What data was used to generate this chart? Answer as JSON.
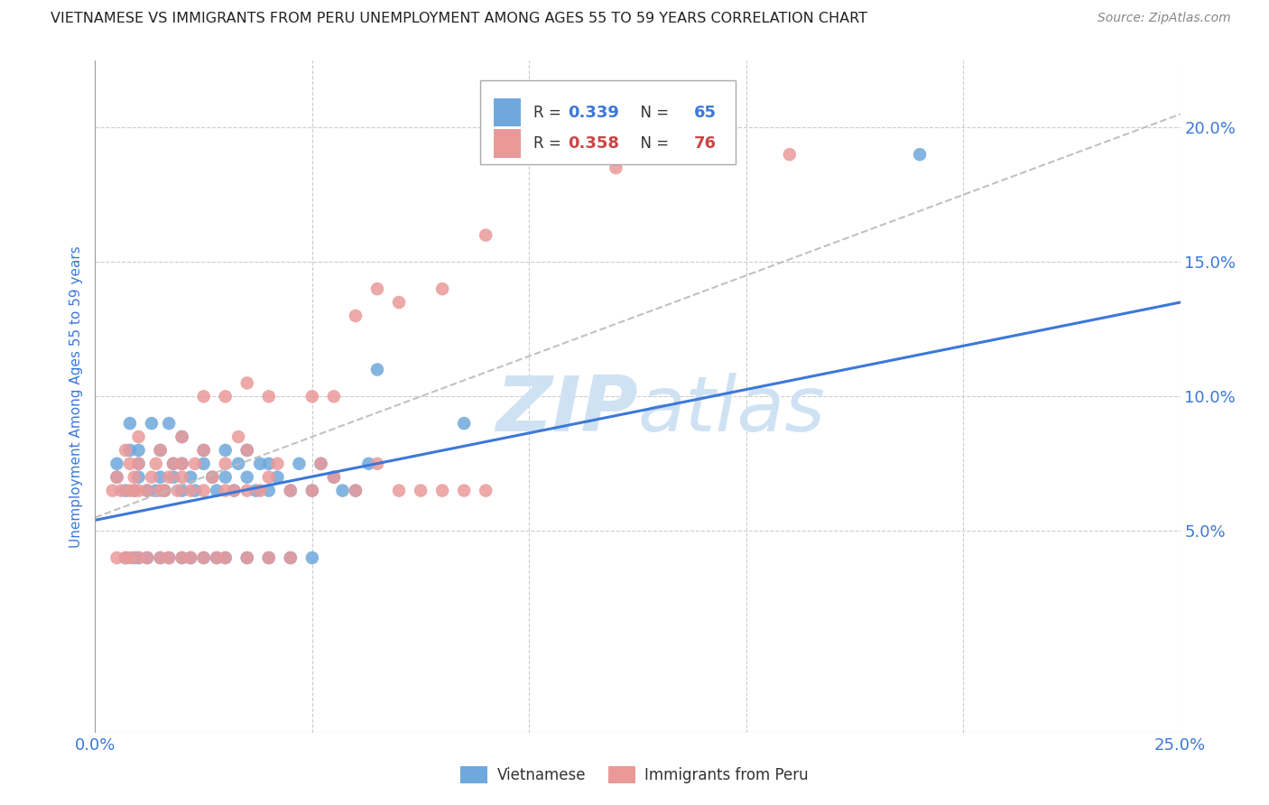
{
  "title": "VIETNAMESE VS IMMIGRANTS FROM PERU UNEMPLOYMENT AMONG AGES 55 TO 59 YEARS CORRELATION CHART",
  "source": "Source: ZipAtlas.com",
  "ylabel": "Unemployment Among Ages 55 to 59 years",
  "xlim": [
    0.0,
    0.25
  ],
  "ylim": [
    -0.025,
    0.225
  ],
  "color_vietnamese": "#6fa8dc",
  "color_peru": "#ea9999",
  "color_blue_line": "#3c78d8",
  "color_pink_line": "#cc4444",
  "color_axis_labels": "#3c78d8",
  "watermark_color": "#cfe2f3",
  "background_color": "#ffffff",
  "grid_color": "#cccccc",
  "vietnamese_x": [
    0.005,
    0.005,
    0.007,
    0.008,
    0.008,
    0.009,
    0.01,
    0.01,
    0.01,
    0.012,
    0.013,
    0.014,
    0.015,
    0.015,
    0.016,
    0.017,
    0.018,
    0.018,
    0.02,
    0.02,
    0.02,
    0.022,
    0.023,
    0.025,
    0.025,
    0.027,
    0.028,
    0.03,
    0.03,
    0.032,
    0.033,
    0.035,
    0.035,
    0.037,
    0.038,
    0.04,
    0.04,
    0.042,
    0.045,
    0.047,
    0.05,
    0.052,
    0.055,
    0.057,
    0.06,
    0.063,
    0.065,
    0.007,
    0.009,
    0.01,
    0.012,
    0.015,
    0.017,
    0.02,
    0.022,
    0.025,
    0.028,
    0.03,
    0.035,
    0.04,
    0.045,
    0.05,
    0.085,
    0.19
  ],
  "vietnamese_y": [
    0.07,
    0.075,
    0.065,
    0.08,
    0.09,
    0.065,
    0.07,
    0.075,
    0.08,
    0.065,
    0.09,
    0.065,
    0.07,
    0.08,
    0.065,
    0.09,
    0.07,
    0.075,
    0.065,
    0.075,
    0.085,
    0.07,
    0.065,
    0.075,
    0.08,
    0.07,
    0.065,
    0.07,
    0.08,
    0.065,
    0.075,
    0.07,
    0.08,
    0.065,
    0.075,
    0.065,
    0.075,
    0.07,
    0.065,
    0.075,
    0.065,
    0.075,
    0.07,
    0.065,
    0.065,
    0.075,
    0.11,
    0.04,
    0.04,
    0.04,
    0.04,
    0.04,
    0.04,
    0.04,
    0.04,
    0.04,
    0.04,
    0.04,
    0.04,
    0.04,
    0.04,
    0.04,
    0.09,
    0.19
  ],
  "peru_x": [
    0.004,
    0.005,
    0.006,
    0.007,
    0.008,
    0.008,
    0.009,
    0.009,
    0.01,
    0.01,
    0.01,
    0.012,
    0.013,
    0.014,
    0.015,
    0.015,
    0.016,
    0.017,
    0.018,
    0.019,
    0.02,
    0.02,
    0.02,
    0.022,
    0.023,
    0.025,
    0.025,
    0.027,
    0.03,
    0.03,
    0.032,
    0.033,
    0.035,
    0.035,
    0.038,
    0.04,
    0.042,
    0.045,
    0.05,
    0.052,
    0.055,
    0.06,
    0.065,
    0.07,
    0.075,
    0.08,
    0.085,
    0.09,
    0.005,
    0.007,
    0.008,
    0.01,
    0.012,
    0.015,
    0.017,
    0.02,
    0.022,
    0.025,
    0.028,
    0.03,
    0.035,
    0.04,
    0.045,
    0.025,
    0.03,
    0.035,
    0.04,
    0.05,
    0.055,
    0.06,
    0.065,
    0.07,
    0.08,
    0.09,
    0.12,
    0.16
  ],
  "peru_y": [
    0.065,
    0.07,
    0.065,
    0.08,
    0.065,
    0.075,
    0.065,
    0.07,
    0.065,
    0.075,
    0.085,
    0.065,
    0.07,
    0.075,
    0.065,
    0.08,
    0.065,
    0.07,
    0.075,
    0.065,
    0.07,
    0.075,
    0.085,
    0.065,
    0.075,
    0.065,
    0.08,
    0.07,
    0.065,
    0.075,
    0.065,
    0.085,
    0.065,
    0.08,
    0.065,
    0.07,
    0.075,
    0.065,
    0.065,
    0.075,
    0.07,
    0.065,
    0.075,
    0.065,
    0.065,
    0.065,
    0.065,
    0.065,
    0.04,
    0.04,
    0.04,
    0.04,
    0.04,
    0.04,
    0.04,
    0.04,
    0.04,
    0.04,
    0.04,
    0.04,
    0.04,
    0.04,
    0.04,
    0.1,
    0.1,
    0.105,
    0.1,
    0.1,
    0.1,
    0.13,
    0.14,
    0.135,
    0.14,
    0.16,
    0.185,
    0.19
  ],
  "blue_trend_x": [
    0.0,
    0.25
  ],
  "blue_trend_y": [
    0.054,
    0.135
  ],
  "pink_trend_x": [
    0.0,
    0.25
  ],
  "pink_trend_y": [
    0.055,
    0.205
  ]
}
